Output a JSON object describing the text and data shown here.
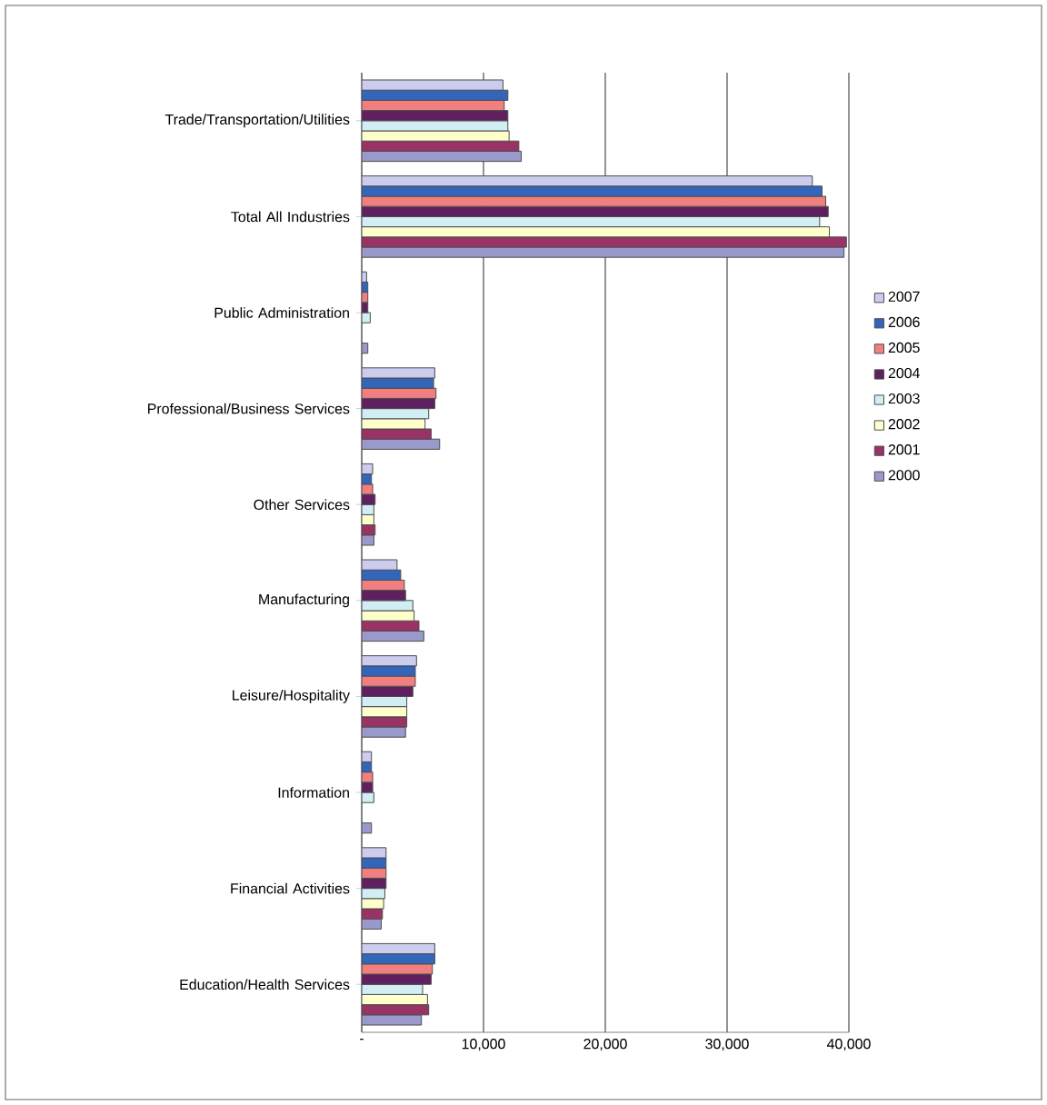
{
  "chart_data": {
    "type": "bar",
    "orientation": "horizontal",
    "categories": [
      "Trade/Transportation/Utilities",
      "Total All Industries",
      "Public Administration",
      "Professional/Business Services",
      "Other Services",
      "Manufacturing",
      "Leisure/Hospitality",
      "Information",
      "Financial Activities",
      "Education/Health Services"
    ],
    "series": [
      {
        "name": "2007",
        "color": "#ccccee",
        "values": [
          11600,
          37000,
          400,
          6000,
          900,
          2900,
          4500,
          800,
          2000,
          6000
        ]
      },
      {
        "name": "2006",
        "color": "#3366bb",
        "values": [
          12000,
          37800,
          500,
          5900,
          800,
          3200,
          4400,
          800,
          2000,
          6000
        ]
      },
      {
        "name": "2005",
        "color": "#f08080",
        "values": [
          11700,
          38100,
          500,
          6100,
          900,
          3500,
          4400,
          900,
          2000,
          5800
        ]
      },
      {
        "name": "2004",
        "color": "#602060",
        "values": [
          12000,
          38300,
          500,
          6000,
          1100,
          3600,
          4200,
          900,
          2000,
          5700
        ]
      },
      {
        "name": "2003",
        "color": "#d0eef4",
        "values": [
          12000,
          37600,
          700,
          5500,
          1000,
          4200,
          3700,
          1000,
          1900,
          5000
        ]
      },
      {
        "name": "2002",
        "color": "#ffffcc",
        "values": [
          12100,
          38400,
          null,
          5200,
          1000,
          4300,
          3700,
          null,
          1800,
          5400
        ]
      },
      {
        "name": "2001",
        "color": "#993366",
        "values": [
          12900,
          39800,
          null,
          5700,
          1100,
          4700,
          3700,
          null,
          1700,
          5500
        ]
      },
      {
        "name": "2000",
        "color": "#9999cc",
        "values": [
          13100,
          39600,
          500,
          6400,
          1000,
          5100,
          3600,
          800,
          1600,
          4900
        ]
      }
    ],
    "xlim": [
      0,
      40000
    ],
    "xticks": [
      {
        "value": 0,
        "label": "-"
      },
      {
        "value": 10000,
        "label": "10,000"
      },
      {
        "value": 20000,
        "label": "20,000"
      },
      {
        "value": 30000,
        "label": "30,000"
      },
      {
        "value": 40000,
        "label": "40,000"
      }
    ],
    "grid": "x",
    "legend": "right"
  }
}
